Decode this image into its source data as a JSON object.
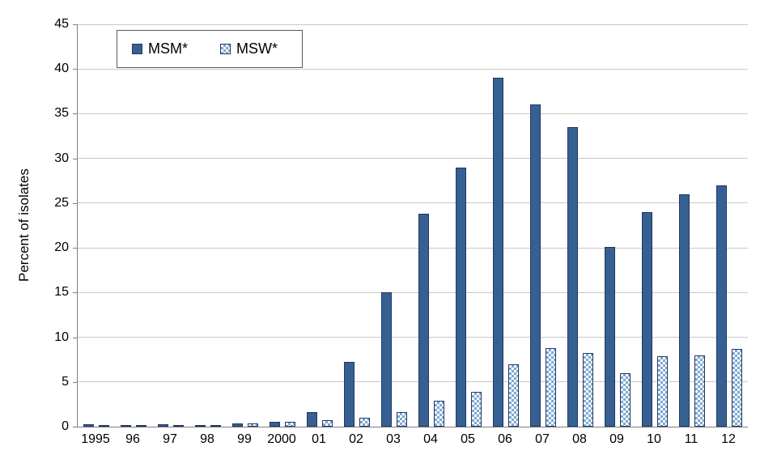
{
  "chart_data": {
    "type": "bar",
    "title": "",
    "xlabel": "",
    "ylabel": "Percent of isolates",
    "ylim": [
      0,
      45
    ],
    "ytick_step": 5,
    "grid": true,
    "legend_position": "top-left",
    "categories": [
      "1995",
      "96",
      "97",
      "98",
      "99",
      "2000",
      "01",
      "02",
      "03",
      "04",
      "05",
      "06",
      "07",
      "08",
      "09",
      "10",
      "11",
      "12"
    ],
    "series": [
      {
        "name": "MSM*",
        "style": "solid",
        "color": "#366092",
        "values": [
          0.3,
          0.15,
          0.3,
          0.2,
          0.4,
          0.5,
          1.6,
          7.2,
          15.0,
          23.8,
          29.0,
          39.0,
          36.0,
          33.5,
          20.1,
          24.0,
          26.0,
          27.0
        ]
      },
      {
        "name": "MSW*",
        "style": "checker",
        "color": "#7fa7cf",
        "values": [
          0.1,
          0.1,
          0.2,
          0.1,
          0.4,
          0.5,
          0.7,
          1.0,
          1.6,
          2.9,
          3.9,
          7.0,
          8.8,
          8.2,
          6.0,
          7.9,
          8.0,
          8.7
        ]
      }
    ],
    "colors": {
      "axis": "#7f7f7f",
      "gridline": "#c8c8c8",
      "bar_border": "#1f3864",
      "msm_fill": "#366092",
      "msw_pattern": "#7fa7cf"
    }
  }
}
